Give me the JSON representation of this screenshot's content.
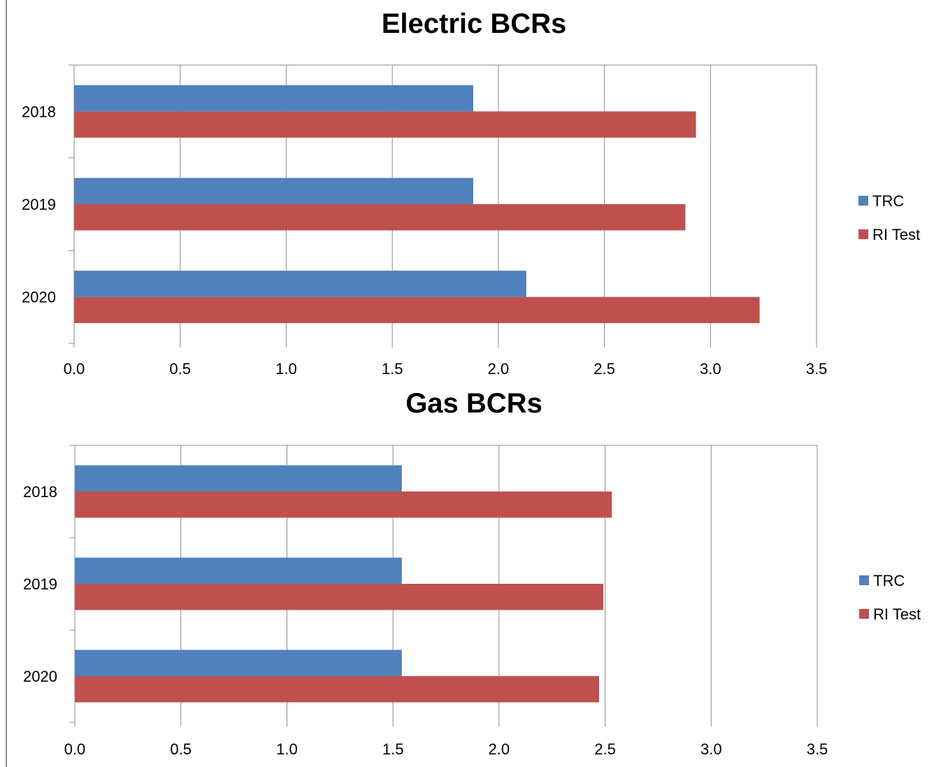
{
  "chart_data": [
    {
      "type": "bar",
      "orientation": "horizontal",
      "title": "Electric BCRs",
      "categories": [
        "2018",
        "2019",
        "2020"
      ],
      "series": [
        {
          "name": "TRC",
          "color": "#4F81BD",
          "values": [
            1.88,
            1.88,
            2.13
          ]
        },
        {
          "name": "RI Test",
          "color": "#C0504D",
          "values": [
            2.93,
            2.88,
            3.23
          ]
        }
      ],
      "xlim": [
        0,
        3.5
      ],
      "xticks": [
        "0.0",
        "0.5",
        "1.0",
        "1.5",
        "2.0",
        "2.5",
        "3.0",
        "3.5"
      ],
      "grid": true,
      "legend_position": "right"
    },
    {
      "type": "bar",
      "orientation": "horizontal",
      "title": "Gas BCRs",
      "categories": [
        "2018",
        "2019",
        "2020"
      ],
      "series": [
        {
          "name": "TRC",
          "color": "#4F81BD",
          "values": [
            1.54,
            1.54,
            1.54
          ]
        },
        {
          "name": "RI Test",
          "color": "#C0504D",
          "values": [
            2.53,
            2.49,
            2.47
          ]
        }
      ],
      "xlim": [
        0,
        3.5
      ],
      "xticks": [
        "0.0",
        "0.5",
        "1.0",
        "1.5",
        "2.0",
        "2.5",
        "3.0",
        "3.5"
      ],
      "grid": true,
      "legend_position": "right"
    }
  ]
}
